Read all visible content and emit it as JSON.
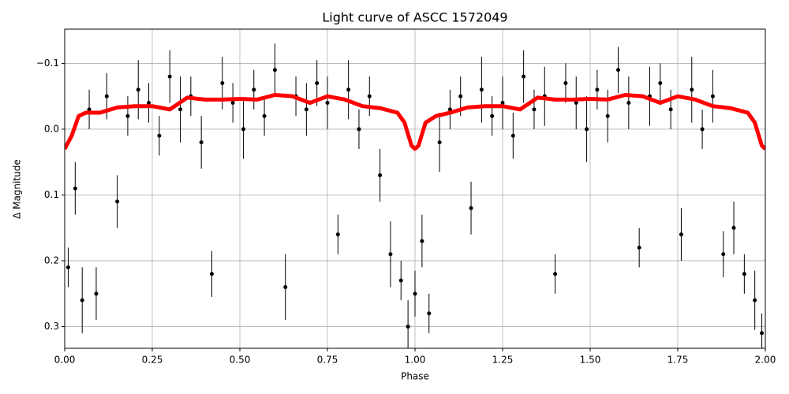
{
  "chart_data": {
    "type": "scatter",
    "title": "Light curve of ASCC 1572049",
    "xlabel": "Phase",
    "ylabel": "Δ Magnitude",
    "xlim": [
      0,
      2
    ],
    "ylim": [
      0.333,
      -0.152
    ],
    "xticks": [
      {
        "value": 0,
        "label": "0.00"
      },
      {
        "value": 0.25,
        "label": "0.25"
      },
      {
        "value": 0.5,
        "label": "0.50"
      },
      {
        "value": 0.75,
        "label": "0.75"
      },
      {
        "value": 1,
        "label": "1.00"
      },
      {
        "value": 1.25,
        "label": "1.25"
      },
      {
        "value": 1.5,
        "label": "1.50"
      },
      {
        "value": 1.75,
        "label": "1.75"
      },
      {
        "value": 2,
        "label": "2.00"
      }
    ],
    "yticks": [
      {
        "value": -0.1,
        "label": "−0.1"
      },
      {
        "value": 0,
        "label": "0.0"
      },
      0.1,
      0.2,
      0.3
    ],
    "grid": true,
    "series": [
      {
        "type": "scatter",
        "color": "#000000",
        "x": [
          0.01,
          0.03,
          0.05,
          0.07,
          0.09,
          0.12,
          0.15,
          0.18,
          0.21,
          0.24,
          0.27,
          0.3,
          0.33,
          0.36,
          0.39,
          0.42,
          0.45,
          0.48,
          0.51,
          0.54,
          0.57,
          0.6,
          0.63,
          0.66,
          0.69,
          0.72,
          0.75,
          0.78,
          0.81,
          0.84,
          0.87,
          0.9,
          0.93,
          0.96,
          0.98,
          1.0,
          1.02,
          1.04,
          1.07,
          1.1,
          1.13,
          1.16,
          1.19,
          1.22,
          1.25,
          1.28,
          1.31,
          1.34,
          1.37,
          1.4,
          1.43,
          1.46,
          1.49,
          1.52,
          1.55,
          1.58,
          1.61,
          1.64,
          1.67,
          1.7,
          1.73,
          1.76,
          1.79,
          1.82,
          1.85,
          1.88,
          1.91,
          1.94,
          1.97,
          1.99
        ],
        "values": [
          0.21,
          0.09,
          0.26,
          -0.03,
          0.25,
          -0.05,
          0.11,
          -0.02,
          -0.06,
          -0.04,
          0.01,
          -0.08,
          -0.03,
          -0.05,
          0.02,
          0.22,
          -0.07,
          -0.04,
          0.0,
          -0.06,
          -0.02,
          -0.09,
          0.24,
          -0.05,
          -0.03,
          -0.07,
          -0.04,
          0.16,
          -0.06,
          0.0,
          -0.05,
          0.07,
          0.19,
          0.23,
          0.3,
          0.25,
          0.17,
          0.28,
          0.02,
          -0.03,
          -0.05,
          0.12,
          -0.06,
          -0.02,
          -0.04,
          0.01,
          -0.08,
          -0.03,
          -0.05,
          0.22,
          -0.07,
          -0.04,
          0.0,
          -0.06,
          -0.02,
          -0.09,
          -0.04,
          0.18,
          -0.05,
          -0.07,
          -0.03,
          0.16,
          -0.06,
          0.0,
          -0.05,
          0.19,
          0.15,
          0.22,
          0.26,
          0.31
        ],
        "errors": [
          0.03,
          0.04,
          0.05,
          0.03,
          0.04,
          0.035,
          0.04,
          0.03,
          0.045,
          0.03,
          0.03,
          0.04,
          0.05,
          0.03,
          0.04,
          0.035,
          0.04,
          0.03,
          0.045,
          0.03,
          0.03,
          0.04,
          0.05,
          0.03,
          0.04,
          0.035,
          0.04,
          0.03,
          0.045,
          0.03,
          0.03,
          0.04,
          0.05,
          0.03,
          0.04,
          0.035,
          0.04,
          0.03,
          0.045,
          0.03,
          0.03,
          0.04,
          0.05,
          0.03,
          0.04,
          0.035,
          0.04,
          0.03,
          0.045,
          0.03,
          0.03,
          0.04,
          0.05,
          0.03,
          0.04,
          0.035,
          0.04,
          0.03,
          0.045,
          0.03,
          0.03,
          0.04,
          0.05,
          0.03,
          0.04,
          0.035,
          0.04,
          0.03,
          0.045,
          0.03
        ]
      },
      {
        "type": "line",
        "color": "#ff0000",
        "x": [
          0,
          0.02,
          0.04,
          0.06,
          0.1,
          0.15,
          0.2,
          0.25,
          0.3,
          0.35,
          0.4,
          0.45,
          0.5,
          0.55,
          0.6,
          0.65,
          0.7,
          0.75,
          0.8,
          0.85,
          0.9,
          0.95,
          0.97,
          0.99,
          1.0,
          1.01,
          1.03,
          1.06,
          1.1,
          1.15,
          1.2,
          1.25,
          1.3,
          1.35,
          1.4,
          1.45,
          1.5,
          1.55,
          1.6,
          1.65,
          1.7,
          1.75,
          1.8,
          1.85,
          1.9,
          1.95,
          1.97,
          1.99,
          2.0
        ],
        "values": [
          0.03,
          0.01,
          -0.02,
          -0.025,
          -0.025,
          -0.033,
          -0.035,
          -0.035,
          -0.03,
          -0.048,
          -0.045,
          -0.045,
          -0.046,
          -0.045,
          -0.052,
          -0.05,
          -0.04,
          -0.05,
          -0.045,
          -0.035,
          -0.032,
          -0.025,
          -0.01,
          0.025,
          0.03,
          0.025,
          -0.01,
          -0.02,
          -0.025,
          -0.033,
          -0.035,
          -0.035,
          -0.03,
          -0.048,
          -0.045,
          -0.045,
          -0.046,
          -0.045,
          -0.052,
          -0.05,
          -0.04,
          -0.05,
          -0.045,
          -0.035,
          -0.032,
          -0.025,
          -0.01,
          0.025,
          0.03
        ]
      }
    ]
  }
}
